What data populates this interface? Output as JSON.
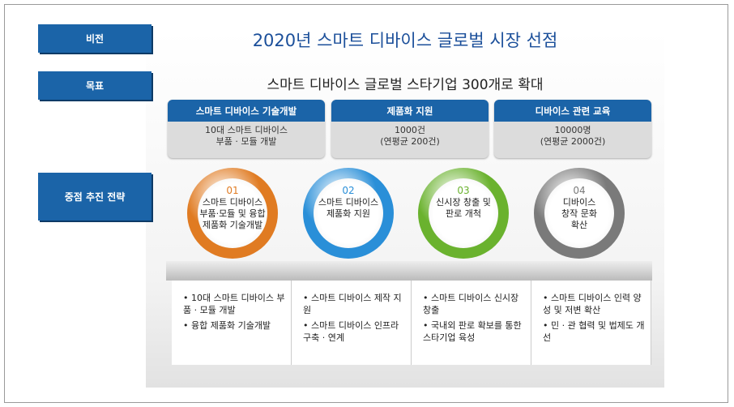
{
  "labels": {
    "vision": "비전",
    "goal": "목표",
    "strategy": "중점 추진 전략"
  },
  "vision": "2020년 스마트 디바이스 글로벌 시장 선점",
  "goal": "스마트 디바이스 글로벌 스타기업 300개로 확대",
  "targets": [
    {
      "header": "스마트 디바이스 기술개발",
      "line1": "10대 스마트 디바이스",
      "line2": "부품 · 모듈 개발"
    },
    {
      "header": "제품화 지원",
      "line1": "1000건",
      "line2": "(연평균 200건)"
    },
    {
      "header": "디바이스 관련 교육",
      "line1": "10000명",
      "line2": "(연평균 2000건)"
    }
  ],
  "strategies": [
    {
      "num": "01",
      "l1": "스마트 디바이스",
      "l2": "부품·모듈 및 융합",
      "l3": "제품화 기술개발",
      "color": "#e07b22"
    },
    {
      "num": "02",
      "l1": "스마트 디바이스",
      "l2": "제품화 지원",
      "l3": "",
      "color": "#2a8fd8"
    },
    {
      "num": "03",
      "l1": "신시장 창출 및",
      "l2": "판로 개척",
      "l3": "",
      "color": "#6ab22e"
    },
    {
      "num": "04",
      "l1": "디바이스",
      "l2": "창작 문화",
      "l3": "확산",
      "color": "#7a7a7a"
    }
  ],
  "details": [
    [
      "• 10대 스마트 디바이스 부품 · 모듈 개발",
      "• 융합 제품화 기술개발"
    ],
    [
      "• 스마트 디바이스 제작 지원",
      "• 스마트 디바이스 인프라 구축 · 연계"
    ],
    [
      "• 스마트 디바이스 신시장 창출",
      "• 국내외 판로 확보를 통한 스타기업 육성"
    ],
    [
      "• 스마트 디바이스 인력 양성 및 저변 확산",
      "• 민 · 관 협력 및 법제도 개선"
    ]
  ]
}
